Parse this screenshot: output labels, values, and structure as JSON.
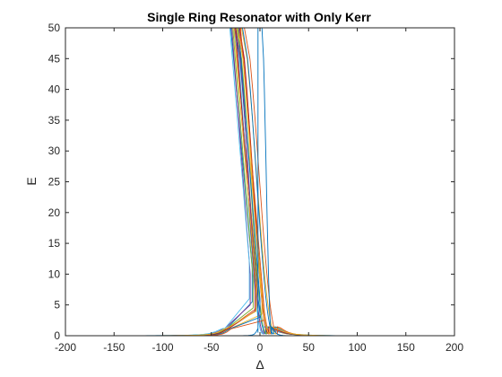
{
  "chart_data": {
    "type": "line",
    "title": "Single Ring Resonator with Only Kerr",
    "xlabel": "Δ",
    "ylabel": "E",
    "xlim": [
      -200,
      200
    ],
    "ylim": [
      0,
      50
    ],
    "xticks": [
      -200,
      -150,
      -100,
      -50,
      0,
      50,
      100,
      150,
      200
    ],
    "yticks": [
      0,
      5,
      10,
      15,
      20,
      25,
      30,
      35,
      40,
      45,
      50
    ],
    "grid": false,
    "legend": "none",
    "series": [
      {
        "color": "#0072bd",
        "shift": -34,
        "width": 10,
        "x_top": -30,
        "threshold_x": -8,
        "threshold_y": 11
      },
      {
        "color": "#d95319",
        "shift": -32,
        "width": 8,
        "x_top": -26,
        "threshold_x": -3,
        "threshold_y": 9
      },
      {
        "color": "#edb120",
        "shift": -30,
        "width": 7,
        "x_top": -23,
        "threshold_x": 2,
        "threshold_y": 7
      },
      {
        "color": "#7e2f8e",
        "shift": -35,
        "width": 9,
        "x_top": -29,
        "threshold_x": -10,
        "threshold_y": 10
      },
      {
        "color": "#77ac30",
        "shift": -33,
        "width": 8,
        "x_top": -28,
        "threshold_x": -7,
        "threshold_y": 9
      },
      {
        "color": "#4dbeee",
        "shift": -36,
        "width": 11,
        "x_top": -31,
        "threshold_x": -11,
        "threshold_y": 12
      },
      {
        "color": "#a2142f",
        "shift": -31,
        "width": 8,
        "x_top": -25,
        "threshold_x": -5,
        "threshold_y": 8
      },
      {
        "color": "#0072bd",
        "shift": -29,
        "width": 7,
        "x_top": -22,
        "threshold_x": 0,
        "threshold_y": 6
      },
      {
        "color": "#d95319",
        "shift": -28,
        "width": 6,
        "x_top": -20,
        "threshold_x": 4,
        "threshold_y": 5
      },
      {
        "color": "#edb120",
        "shift": -34,
        "width": 9,
        "x_top": -27,
        "threshold_x": -4,
        "threshold_y": 8
      },
      {
        "color": "#0072bd",
        "shift": -2,
        "width": 2,
        "x_top": -2,
        "threshold_x": -2,
        "threshold_y": 1
      }
    ],
    "colors": {
      "axes": "#262626",
      "background": "#ffffff"
    }
  }
}
